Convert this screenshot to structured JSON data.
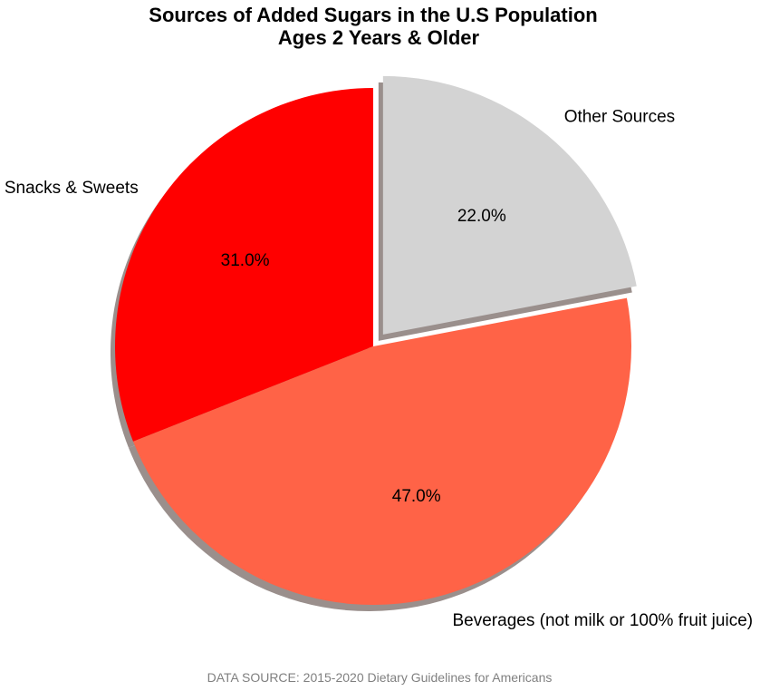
{
  "chart_data": {
    "type": "pie",
    "title_lines": [
      "Sources of Added Sugars in the U.S Population",
      "Ages 2 Years & Older"
    ],
    "slices": [
      {
        "label": "Snacks & Sweets",
        "value": 31.0,
        "pct_label": "31.0%",
        "color": "#ff0000",
        "exploded": false
      },
      {
        "label": "Beverages (not milk or 100% fruit juice)",
        "value": 47.0,
        "pct_label": "47.0%",
        "color": "#ff6347",
        "exploded": false
      },
      {
        "label": "Other Sources",
        "value": 22.0,
        "pct_label": "22.0%",
        "color": "#d3d3d3",
        "exploded": true
      }
    ],
    "start_angle_deg": 90,
    "direction": "counterclockwise",
    "shadow": true,
    "source_note": "DATA SOURCE: 2015-2020 Dietary Guidelines for Americans"
  },
  "colors": {
    "shadow": "#9a8f8c",
    "source_note": "#808080",
    "title": "#000000"
  }
}
